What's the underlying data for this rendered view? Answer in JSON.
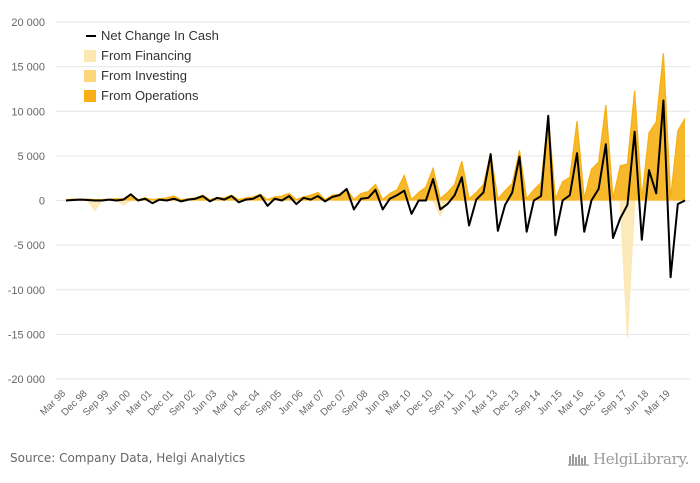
{
  "chart_data": {
    "type": "area",
    "title": "",
    "xlabel": "",
    "ylabel": "",
    "ylim": [
      -20000,
      20000
    ],
    "y_ticks": [
      "20 000",
      "15 000",
      "10 000",
      "5 000",
      "0",
      "-5 000",
      "-10 000",
      "-15 000",
      "-20 000"
    ],
    "y_tick_values": [
      20000,
      15000,
      10000,
      5000,
      0,
      -5000,
      -10000,
      -15000,
      -20000
    ],
    "grid": "horizontal",
    "legend_position": "top-left",
    "x_tick_labels": [
      "Mar 98",
      "Dec 98",
      "Sep 99",
      "Jun 00",
      "Mar 01",
      "Dec 01",
      "Sep 02",
      "Jun 03",
      "Mar 04",
      "Dec 04",
      "Sep 05",
      "Jun 06",
      "Mar 07",
      "Dec 07",
      "Sep 08",
      "Jun 09",
      "Mar 10",
      "Dec 10",
      "Sep 11",
      "Jun 12",
      "Mar 13",
      "Dec 13",
      "Sep 14",
      "Jun 15",
      "Mar 16",
      "Dec 16",
      "Sep 17",
      "Jun 18",
      "Mar 19"
    ],
    "x": [
      "Mar 98",
      "Jun 98",
      "Sep 98",
      "Dec 98",
      "Mar 99",
      "Jun 99",
      "Sep 99",
      "Dec 99",
      "Mar 00",
      "Jun 00",
      "Sep 00",
      "Dec 00",
      "Mar 01",
      "Jun 01",
      "Sep 01",
      "Dec 01",
      "Mar 02",
      "Jun 02",
      "Sep 02",
      "Dec 02",
      "Mar 03",
      "Jun 03",
      "Sep 03",
      "Dec 03",
      "Mar 04",
      "Jun 04",
      "Sep 04",
      "Dec 04",
      "Mar 05",
      "Jun 05",
      "Sep 05",
      "Dec 05",
      "Mar 06",
      "Jun 06",
      "Sep 06",
      "Dec 06",
      "Mar 07",
      "Jun 07",
      "Sep 07",
      "Dec 07",
      "Mar 08",
      "Jun 08",
      "Sep 08",
      "Dec 08",
      "Mar 09",
      "Jun 09",
      "Sep 09",
      "Dec 09",
      "Mar 10",
      "Jun 10",
      "Sep 10",
      "Dec 10",
      "Mar 11",
      "Jun 11",
      "Sep 11",
      "Dec 11",
      "Mar 12",
      "Jun 12",
      "Sep 12",
      "Dec 12",
      "Mar 13",
      "Jun 13",
      "Sep 13",
      "Dec 13",
      "Mar 14",
      "Jun 14",
      "Sep 14",
      "Dec 14",
      "Mar 15",
      "Jun 15",
      "Sep 15",
      "Dec 15",
      "Mar 16",
      "Jun 16",
      "Sep 16",
      "Dec 16",
      "Mar 17",
      "Jun 17",
      "Sep 17",
      "Dec 17",
      "Mar 18",
      "Jun 18",
      "Sep 18",
      "Dec 18",
      "Mar 19",
      "Jun 19",
      "Sep 19"
    ],
    "series": [
      {
        "name": "Net Change In Cash",
        "type": "line",
        "color": "#000000",
        "values": [
          0,
          50,
          100,
          50,
          0,
          0,
          100,
          0,
          100,
          700,
          0,
          200,
          -300,
          100,
          0,
          200,
          -100,
          100,
          200,
          500,
          -100,
          300,
          100,
          500,
          -200,
          100,
          200,
          600,
          -600,
          200,
          0,
          500,
          -400,
          300,
          100,
          500,
          -100,
          400,
          600,
          1300,
          -1000,
          200,
          300,
          1200,
          -1000,
          200,
          600,
          1100,
          -1500,
          0,
          0,
          2400,
          -1000,
          -400,
          600,
          2600,
          -2800,
          100,
          900,
          5200,
          -3400,
          -500,
          900,
          4900,
          -3500,
          0,
          500,
          9500,
          -3900,
          0,
          600,
          5300,
          -3500,
          0,
          1300,
          6300,
          -4200,
          -2000,
          -500,
          7700,
          -4400,
          3400,
          800,
          11200,
          -8600,
          -400,
          0
        ]
      },
      {
        "name": "From Financing",
        "type": "area",
        "color": "#fde7b1",
        "values": [
          0,
          0,
          0,
          0,
          -1100,
          0,
          0,
          0,
          -500,
          0,
          0,
          0,
          0,
          0,
          0,
          0,
          0,
          0,
          0,
          0,
          0,
          0,
          0,
          0,
          0,
          0,
          0,
          0,
          0,
          0,
          0,
          0,
          0,
          0,
          0,
          0,
          0,
          0,
          0,
          0,
          0,
          0,
          0,
          0,
          0,
          0,
          0,
          0,
          0,
          0,
          0,
          0,
          -1700,
          0,
          0,
          0,
          0,
          0,
          0,
          0,
          0,
          0,
          0,
          0,
          0,
          0,
          0,
          0,
          0,
          0,
          0,
          0,
          0,
          0,
          0,
          0,
          0,
          0,
          -15300,
          0,
          0,
          0,
          0,
          0,
          0,
          0,
          0
        ]
      },
      {
        "name": "From Investing",
        "type": "area",
        "color": "#fbd77a",
        "values": [
          0,
          0,
          0,
          0,
          0,
          0,
          0,
          0,
          0,
          0,
          0,
          0,
          0,
          0,
          0,
          0,
          0,
          0,
          0,
          0,
          0,
          0,
          0,
          0,
          0,
          0,
          0,
          0,
          0,
          0,
          0,
          0,
          0,
          0,
          0,
          0,
          0,
          0,
          0,
          0,
          0,
          0,
          0,
          0,
          0,
          0,
          0,
          0,
          0,
          0,
          0,
          0,
          0,
          0,
          0,
          0,
          0,
          0,
          0,
          0,
          0,
          0,
          0,
          0,
          0,
          0,
          0,
          0,
          0,
          0,
          0,
          0,
          0,
          0,
          0,
          0,
          0,
          0,
          0,
          0,
          0,
          0,
          0,
          0,
          0,
          0,
          0
        ]
      },
      {
        "name": "From Operations",
        "type": "area",
        "color": "#f6b014",
        "values": [
          100,
          150,
          150,
          150,
          100,
          100,
          150,
          200,
          200,
          700,
          100,
          300,
          100,
          200,
          300,
          500,
          100,
          200,
          300,
          600,
          100,
          300,
          300,
          600,
          100,
          300,
          400,
          700,
          100,
          400,
          500,
          800,
          100,
          400,
          600,
          900,
          100,
          600,
          700,
          1300,
          100,
          800,
          1000,
          1800,
          100,
          800,
          1200,
          2800,
          100,
          900,
          1500,
          3600,
          200,
          900,
          1800,
          4400,
          200,
          900,
          1800,
          5300,
          200,
          1100,
          1900,
          5600,
          200,
          1200,
          2000,
          9500,
          200,
          2100,
          2600,
          8900,
          200,
          3500,
          4300,
          10700,
          200,
          3900,
          4100,
          12300,
          200,
          7600,
          8800,
          16500,
          300,
          7800,
          9200
        ]
      }
    ]
  },
  "source_text": "Source: Company Data, Helgi Analytics",
  "logo_text": "HelgiLibrary."
}
